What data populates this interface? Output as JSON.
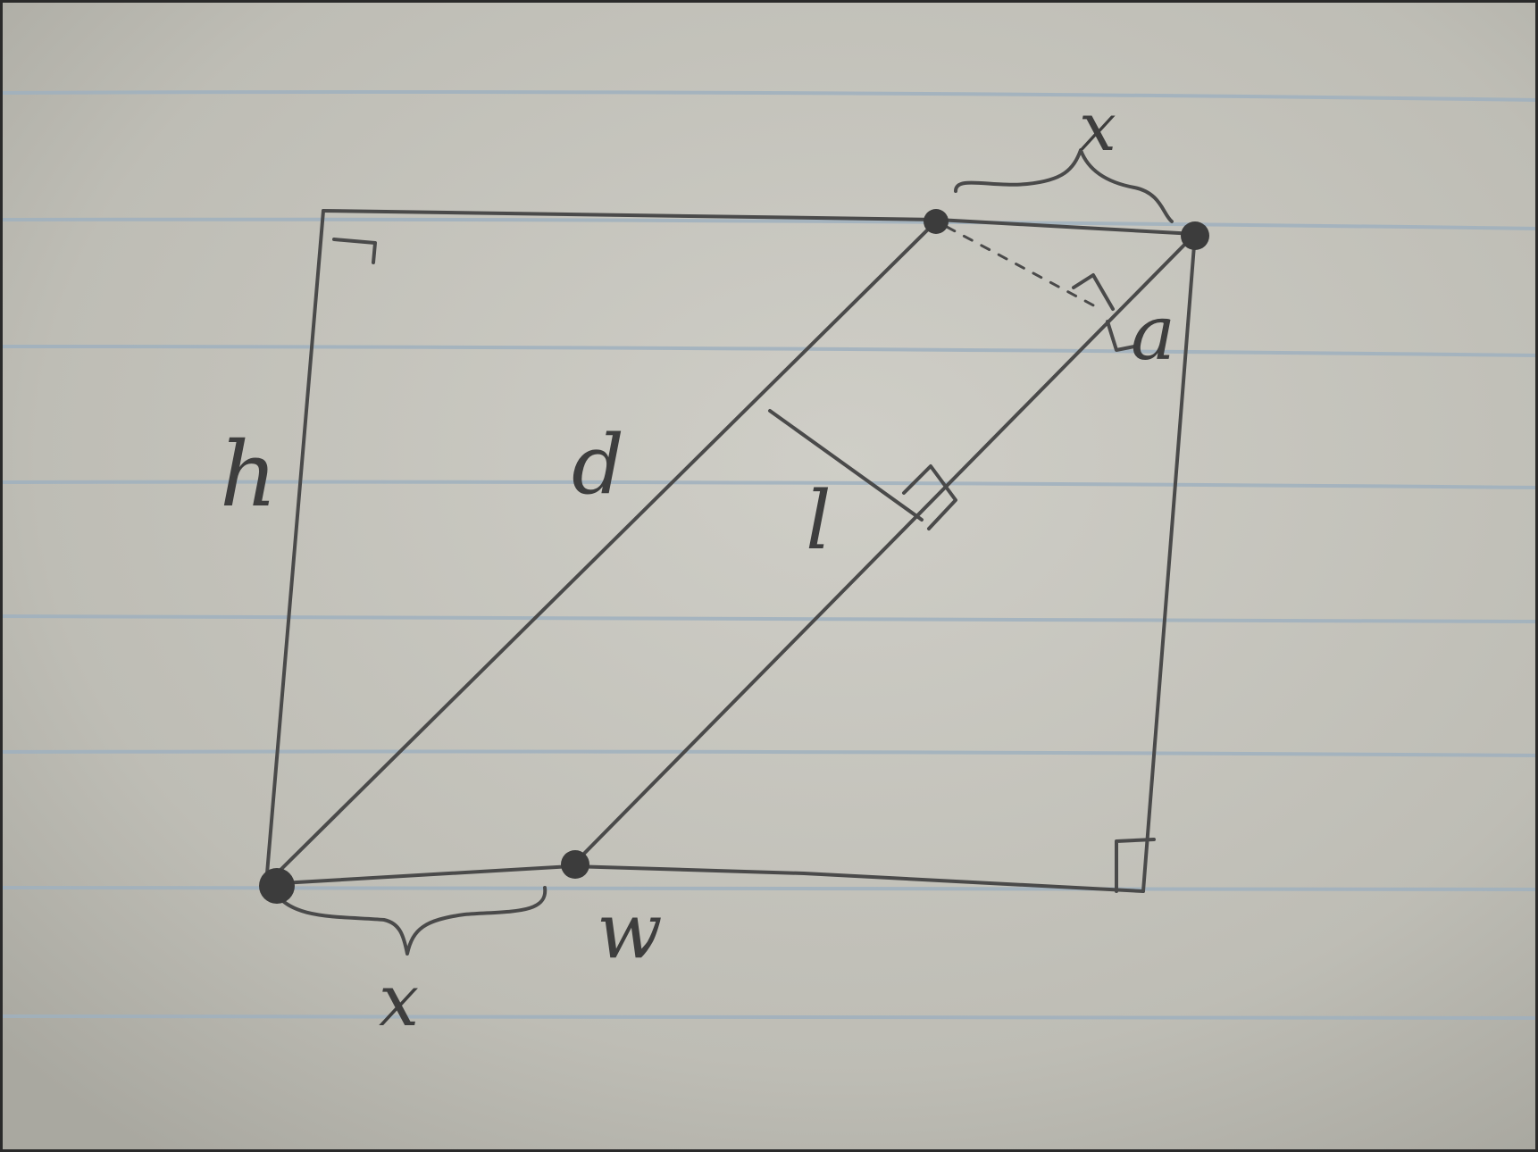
{
  "diagram": {
    "labels": {
      "top_gap": "x",
      "bottom_gap": "x",
      "height": "h",
      "width": "w",
      "diagonal": "d",
      "strip_width": "l",
      "angle": "a"
    },
    "colors": {
      "paper": "#c4c3bb",
      "rule_line": "#9fb0be",
      "ink": "#4a4a4a",
      "border": "#2a2a2a"
    }
  }
}
